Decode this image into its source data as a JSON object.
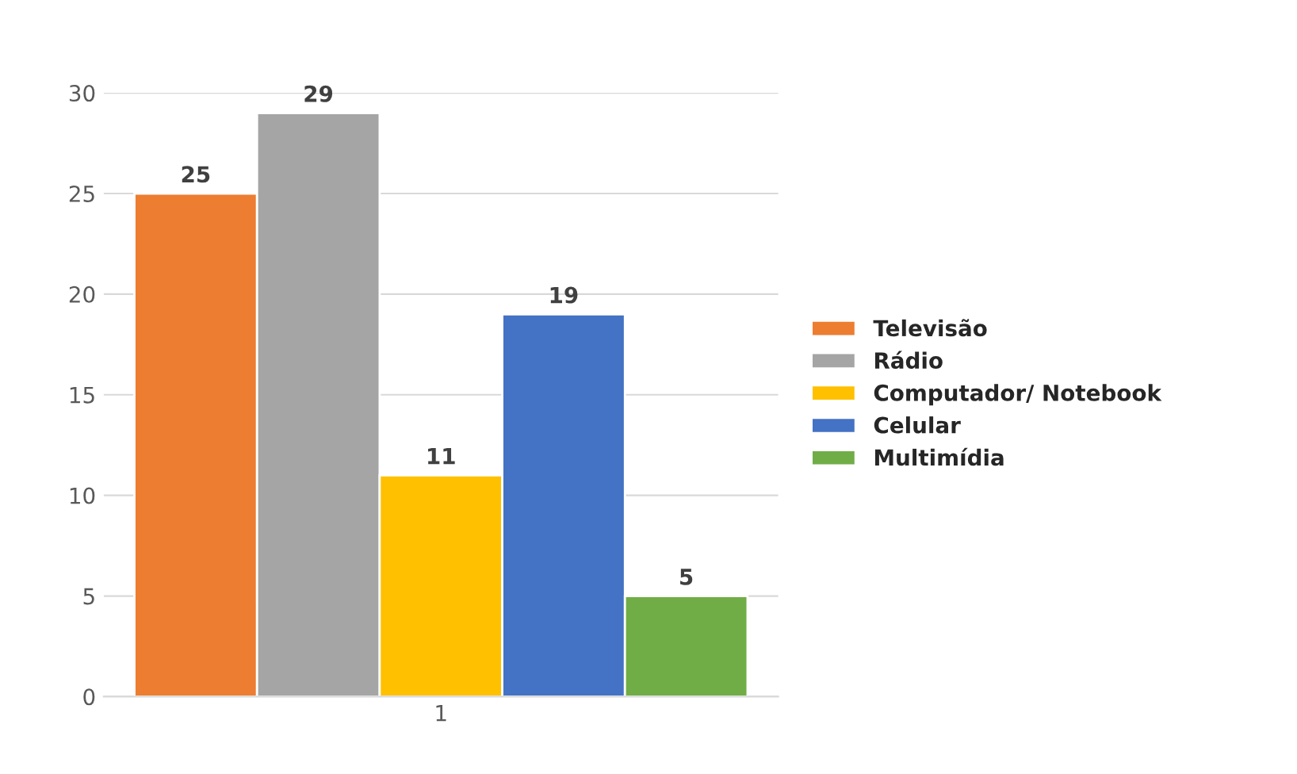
{
  "chart_data": {
    "type": "bar",
    "categories": [
      "1"
    ],
    "series": [
      {
        "name": "Televisão",
        "color": "#ed7d31",
        "values": [
          25
        ]
      },
      {
        "name": "Rádio",
        "color": "#a5a5a5",
        "values": [
          29
        ]
      },
      {
        "name": "Computador/ Notebook",
        "color": "#ffc000",
        "values": [
          11
        ]
      },
      {
        "name": "Celular",
        "color": "#4472c4",
        "values": [
          19
        ]
      },
      {
        "name": "Multimídia",
        "color": "#70ad47",
        "values": [
          5
        ]
      }
    ],
    "ylim": [
      0,
      30
    ],
    "yticks": [
      0,
      5,
      10,
      15,
      20,
      25,
      30
    ],
    "grid": "y",
    "data_labels": true,
    "legend": "right"
  }
}
